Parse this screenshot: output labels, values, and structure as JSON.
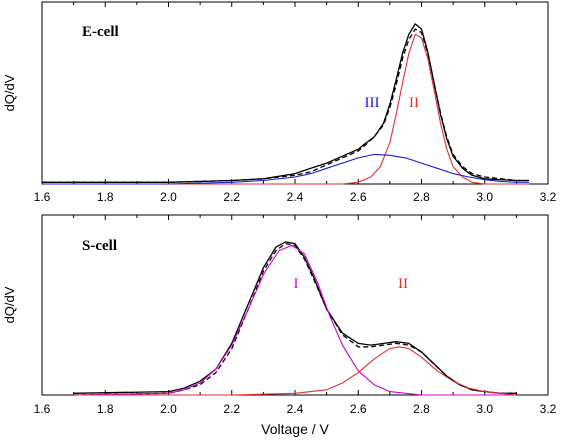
{
  "chart_data": [
    {
      "type": "line",
      "title": "E-cell",
      "ylabel": "dQ/dV",
      "xlabel": "",
      "xlim": [
        1.6,
        3.2
      ],
      "x_ticks": [
        "1.6",
        "1.8",
        "2.0",
        "2.2",
        "2.4",
        "2.6",
        "2.8",
        "3.0",
        "3.2"
      ],
      "y_ticks": [],
      "grid": false,
      "annotations": [
        {
          "text": "III",
          "x": 2.6,
          "y": 0.46,
          "color": "#1a1adb"
        },
        {
          "text": "II",
          "x": 2.76,
          "y": 0.46,
          "color": "#e03030"
        }
      ],
      "series": [
        {
          "color": "#000000",
          "style": "solid",
          "x": [
            1.6,
            2.0,
            2.2,
            2.3,
            2.4,
            2.45,
            2.5,
            2.55,
            2.6,
            2.62,
            2.65,
            2.68,
            2.7,
            2.72,
            2.74,
            2.76,
            2.78,
            2.8,
            2.82,
            2.84,
            2.86,
            2.88,
            2.9,
            2.93,
            2.96,
            3.0,
            3.1,
            3.14
          ],
          "y": [
            0.01,
            0.01,
            0.02,
            0.03,
            0.06,
            0.09,
            0.12,
            0.16,
            0.2,
            0.23,
            0.27,
            0.35,
            0.46,
            0.6,
            0.75,
            0.86,
            0.92,
            0.89,
            0.76,
            0.58,
            0.4,
            0.26,
            0.16,
            0.09,
            0.05,
            0.03,
            0.02,
            0.02
          ]
        },
        {
          "color": "#000000",
          "style": "dashed",
          "x": [
            1.6,
            2.0,
            2.2,
            2.3,
            2.4,
            2.45,
            2.5,
            2.55,
            2.6,
            2.62,
            2.65,
            2.68,
            2.7,
            2.72,
            2.74,
            2.76,
            2.78,
            2.8,
            2.82,
            2.84,
            2.86,
            2.88,
            2.9,
            2.93,
            2.96,
            3.0,
            3.1,
            3.14
          ],
          "y": [
            0.01,
            0.01,
            0.02,
            0.03,
            0.05,
            0.07,
            0.11,
            0.15,
            0.19,
            0.22,
            0.27,
            0.34,
            0.44,
            0.57,
            0.72,
            0.83,
            0.89,
            0.87,
            0.75,
            0.58,
            0.41,
            0.27,
            0.17,
            0.1,
            0.06,
            0.04,
            0.02,
            0.02
          ]
        },
        {
          "color": "#e03030",
          "style": "solid",
          "x": [
            1.6,
            2.4,
            2.55,
            2.6,
            2.64,
            2.67,
            2.7,
            2.72,
            2.74,
            2.76,
            2.78,
            2.8,
            2.82,
            2.84,
            2.86,
            2.88,
            2.9,
            2.93,
            2.96,
            3.0,
            3.1,
            3.14
          ],
          "y": [
            0.0,
            0.0,
            0.0,
            0.01,
            0.04,
            0.1,
            0.24,
            0.4,
            0.58,
            0.75,
            0.86,
            0.84,
            0.72,
            0.54,
            0.35,
            0.2,
            0.1,
            0.04,
            0.01,
            0.0,
            0.0,
            0.0
          ]
        },
        {
          "color": "#1a1adb",
          "style": "solid",
          "x": [
            1.6,
            2.0,
            2.2,
            2.3,
            2.4,
            2.45,
            2.5,
            2.55,
            2.6,
            2.65,
            2.7,
            2.75,
            2.8,
            2.85,
            2.9,
            2.95,
            3.0,
            3.05,
            3.1,
            3.14
          ],
          "y": [
            0.0,
            0.0,
            0.01,
            0.02,
            0.04,
            0.06,
            0.09,
            0.12,
            0.15,
            0.17,
            0.165,
            0.15,
            0.12,
            0.09,
            0.06,
            0.04,
            0.025,
            0.015,
            0.01,
            0.01
          ]
        }
      ]
    },
    {
      "type": "line",
      "title": "S-cell",
      "ylabel": "dQ/dV",
      "xlabel": "Voltage / V",
      "xlim": [
        1.6,
        3.2
      ],
      "x_ticks": [
        "1.6",
        "1.8",
        "2.0",
        "2.2",
        "2.4",
        "2.6",
        "2.8",
        "3.0",
        "3.2"
      ],
      "y_ticks": [],
      "grid": false,
      "annotations": [
        {
          "text": "I",
          "x": 2.44,
          "y": 0.55,
          "color": "#d400d4"
        },
        {
          "text": "II",
          "x": 2.75,
          "y": 0.55,
          "color": "#e03030"
        }
      ],
      "series": [
        {
          "color": "#000000",
          "style": "solid",
          "x": [
            1.7,
            2.0,
            2.05,
            2.1,
            2.15,
            2.2,
            2.25,
            2.3,
            2.34,
            2.37,
            2.4,
            2.43,
            2.46,
            2.5,
            2.55,
            2.6,
            2.64,
            2.68,
            2.72,
            2.76,
            2.8,
            2.84,
            2.88,
            2.92,
            2.96,
            3.0,
            3.05,
            3.1
          ],
          "y": [
            0.01,
            0.02,
            0.04,
            0.08,
            0.15,
            0.3,
            0.52,
            0.74,
            0.86,
            0.89,
            0.88,
            0.8,
            0.68,
            0.5,
            0.36,
            0.3,
            0.29,
            0.3,
            0.31,
            0.3,
            0.25,
            0.18,
            0.11,
            0.06,
            0.03,
            0.02,
            0.01,
            0.01
          ]
        },
        {
          "color": "#000000",
          "style": "dashed",
          "x": [
            1.7,
            2.0,
            2.05,
            2.1,
            2.15,
            2.2,
            2.25,
            2.3,
            2.34,
            2.37,
            2.4,
            2.43,
            2.46,
            2.5,
            2.55,
            2.6,
            2.64,
            2.68,
            2.72,
            2.76,
            2.8,
            2.84,
            2.88,
            2.92,
            2.96,
            3.0,
            3.05,
            3.1
          ],
          "y": [
            0.0,
            0.01,
            0.03,
            0.06,
            0.13,
            0.27,
            0.49,
            0.72,
            0.84,
            0.88,
            0.87,
            0.79,
            0.67,
            0.5,
            0.35,
            0.28,
            0.28,
            0.29,
            0.3,
            0.29,
            0.25,
            0.18,
            0.11,
            0.06,
            0.03,
            0.02,
            0.01,
            0.01
          ]
        },
        {
          "color": "#d400d4",
          "style": "solid",
          "x": [
            1.7,
            2.0,
            2.05,
            2.1,
            2.15,
            2.2,
            2.25,
            2.3,
            2.35,
            2.39,
            2.43,
            2.47,
            2.51,
            2.55,
            2.6,
            2.65,
            2.7,
            2.75,
            2.8,
            2.9,
            3.1
          ],
          "y": [
            0.0,
            0.01,
            0.03,
            0.07,
            0.15,
            0.29,
            0.49,
            0.7,
            0.84,
            0.87,
            0.82,
            0.66,
            0.46,
            0.29,
            0.14,
            0.06,
            0.02,
            0.01,
            0.0,
            0.0,
            0.0
          ]
        },
        {
          "color": "#e03030",
          "style": "solid",
          "x": [
            1.7,
            2.2,
            2.4,
            2.5,
            2.55,
            2.6,
            2.65,
            2.7,
            2.73,
            2.76,
            2.8,
            2.85,
            2.9,
            2.95,
            3.0,
            3.05,
            3.1
          ],
          "y": [
            0.0,
            0.0,
            0.01,
            0.03,
            0.07,
            0.13,
            0.21,
            0.27,
            0.28,
            0.27,
            0.22,
            0.14,
            0.08,
            0.04,
            0.02,
            0.01,
            0.0
          ]
        }
      ]
    }
  ]
}
